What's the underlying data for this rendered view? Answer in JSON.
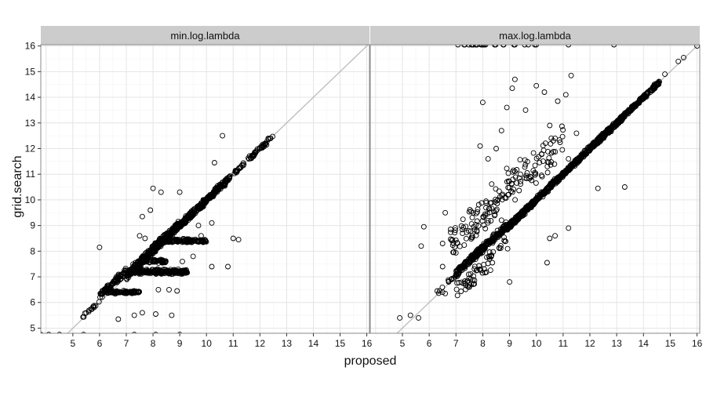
{
  "chart_data": {
    "type": "scatter",
    "facets": [
      "min.log.lambda",
      "max.log.lambda"
    ],
    "xlabel": "proposed",
    "ylabel": "grid.search",
    "xlim": [
      3.8,
      16.1
    ],
    "ylim": [
      4.8,
      16.05
    ],
    "x_ticks": [
      5,
      6,
      7,
      8,
      9,
      10,
      11,
      12,
      13,
      14,
      15,
      16
    ],
    "y_ticks": [
      5,
      6,
      7,
      8,
      9,
      10,
      11,
      12,
      13,
      14,
      15,
      16
    ],
    "reference_line": "y = x",
    "grid": true,
    "colors": {
      "strip": "#cccccc",
      "grid": "#ececec",
      "points": "#000000",
      "reference_line": "#bbbbbb"
    },
    "panels": [
      {
        "label": "min.log.lambda",
        "clusters": [
          {
            "xmin": 5.3,
            "xmax": 6.0,
            "y_offset": 0.05,
            "spread": 0.12,
            "n": 14
          },
          {
            "xmin": 6.0,
            "xmax": 7.0,
            "y_offset": 0.25,
            "spread": 0.18,
            "n": 90
          },
          {
            "xmin": 6.3,
            "xmax": 7.5,
            "y_value": 6.4,
            "spread": 0.08,
            "n": 80
          },
          {
            "xmin": 7.0,
            "xmax": 8.0,
            "y_offset": 0.05,
            "spread": 0.25,
            "n": 180
          },
          {
            "xmin": 7.2,
            "xmax": 9.3,
            "y_value": 7.2,
            "spread": 0.12,
            "n": 220
          },
          {
            "xmin": 7.5,
            "xmax": 8.5,
            "y_value": 7.6,
            "spread": 0.1,
            "n": 60
          },
          {
            "xmin": 8.0,
            "xmax": 9.0,
            "y_offset": 0.05,
            "spread": 0.25,
            "n": 220
          },
          {
            "xmin": 8.2,
            "xmax": 10.0,
            "y_value": 8.4,
            "spread": 0.1,
            "n": 150
          },
          {
            "xmin": 9.0,
            "xmax": 10.0,
            "y_offset": 0.0,
            "spread": 0.2,
            "n": 160
          },
          {
            "xmin": 10.0,
            "xmax": 10.8,
            "y_offset": 0.0,
            "spread": 0.18,
            "n": 90
          },
          {
            "xmin": 10.8,
            "xmax": 12.5,
            "y_offset": 0.0,
            "spread": 0.12,
            "n": 70
          }
        ],
        "outliers": [
          [
            6.0,
            8.15
          ],
          [
            7.6,
            9.35
          ],
          [
            7.9,
            9.6
          ],
          [
            8.0,
            10.45
          ],
          [
            8.3,
            10.3
          ],
          [
            9.0,
            10.3
          ],
          [
            10.6,
            12.5
          ],
          [
            10.3,
            11.45
          ],
          [
            11.2,
            8.45
          ],
          [
            11.0,
            8.5
          ],
          [
            10.8,
            7.4
          ],
          [
            10.2,
            7.4
          ],
          [
            9.5,
            7.8
          ],
          [
            8.7,
            5.5
          ],
          [
            8.1,
            5.55
          ],
          [
            7.6,
            5.6
          ],
          [
            7.3,
            5.5
          ],
          [
            6.7,
            5.35
          ],
          [
            7.3,
            4.75
          ],
          [
            8.1,
            4.75
          ],
          [
            9.0,
            4.75
          ],
          [
            5.4,
            4.75
          ],
          [
            4.5,
            4.75
          ],
          [
            4.1,
            4.75
          ],
          [
            3.8,
            4.75
          ],
          [
            7.7,
            8.5
          ],
          [
            7.5,
            8.6
          ],
          [
            9.8,
            8.6
          ],
          [
            9.1,
            7.6
          ],
          [
            8.6,
            6.5
          ],
          [
            8.2,
            6.5
          ],
          [
            8.9,
            6.45
          ],
          [
            9.5,
            9.4
          ],
          [
            10.2,
            9.1
          ],
          [
            9.7,
            9.0
          ]
        ]
      },
      {
        "label": "max.log.lambda",
        "clusters": [
          {
            "xmin": 6.3,
            "xmax": 7.5,
            "y_offset": 0.05,
            "spread": 0.15,
            "n": 18
          },
          {
            "xmin": 7.0,
            "xmax": 8.0,
            "y_offset": 0.15,
            "spread": 0.2,
            "n": 90
          },
          {
            "xmin": 7.6,
            "xmax": 8.9,
            "y_offset": 0.1,
            "spread": 0.2,
            "n": 180
          },
          {
            "xmin": 8.9,
            "xmax": 10.0,
            "y_offset": 0.0,
            "spread": 0.15,
            "n": 200
          },
          {
            "xmin": 10.0,
            "xmax": 12.0,
            "y_offset": 0.0,
            "spread": 0.15,
            "n": 260
          },
          {
            "xmin": 12.0,
            "xmax": 13.2,
            "y_offset": 0.0,
            "spread": 0.15,
            "n": 200
          },
          {
            "xmin": 13.2,
            "xmax": 14.6,
            "y_offset": 0.0,
            "spread": 0.12,
            "n": 170
          },
          {
            "xmin": 6.8,
            "xmax": 11.0,
            "y_offset": 1.4,
            "spread": 1.1,
            "n": 170
          },
          {
            "xmin": 7.0,
            "xmax": 9.0,
            "y_offset": -0.6,
            "spread": 0.6,
            "n": 60
          },
          {
            "xmin": 7.0,
            "xmax": 10.0,
            "y_value": 16.05,
            "spread": 0.0,
            "n": 24
          }
        ],
        "outliers": [
          [
            4.9,
            5.4
          ],
          [
            5.6,
            5.4
          ],
          [
            5.3,
            5.5
          ],
          [
            5.7,
            8.2
          ],
          [
            5.8,
            8.95
          ],
          [
            6.5,
            8.3
          ],
          [
            6.6,
            9.5
          ],
          [
            6.8,
            8.85
          ],
          [
            6.5,
            6.4
          ],
          [
            7.5,
            6.6
          ],
          [
            9.0,
            6.8
          ],
          [
            8.9,
            13.6
          ],
          [
            9.2,
            14.7
          ],
          [
            9.1,
            14.35
          ],
          [
            10.0,
            14.45
          ],
          [
            10.3,
            14.2
          ],
          [
            10.8,
            13.85
          ],
          [
            11.1,
            14.1
          ],
          [
            11.3,
            14.85
          ],
          [
            10.7,
            12.4
          ],
          [
            11.5,
            12.6
          ],
          [
            11.2,
            11.6
          ],
          [
            12.3,
            10.45
          ],
          [
            13.3,
            10.5
          ],
          [
            10.7,
            8.6
          ],
          [
            10.5,
            8.5
          ],
          [
            10.4,
            7.55
          ],
          [
            11.2,
            8.9
          ],
          [
            8.0,
            13.8
          ],
          [
            9.6,
            13.5
          ],
          [
            8.7,
            12.7
          ],
          [
            10.5,
            12.9
          ],
          [
            15.5,
            15.55
          ],
          [
            15.3,
            15.4
          ],
          [
            14.8,
            14.9
          ],
          [
            16.0,
            16.0
          ],
          [
            9.7,
            16.05
          ],
          [
            11.2,
            16.05
          ],
          [
            12.9,
            16.05
          ],
          [
            8.5,
            12.0
          ],
          [
            7.9,
            12.1
          ],
          [
            8.2,
            11.6
          ],
          [
            6.5,
            7.4
          ],
          [
            6.3,
            6.45
          ],
          [
            6.6,
            6.35
          ]
        ]
      }
    ]
  }
}
